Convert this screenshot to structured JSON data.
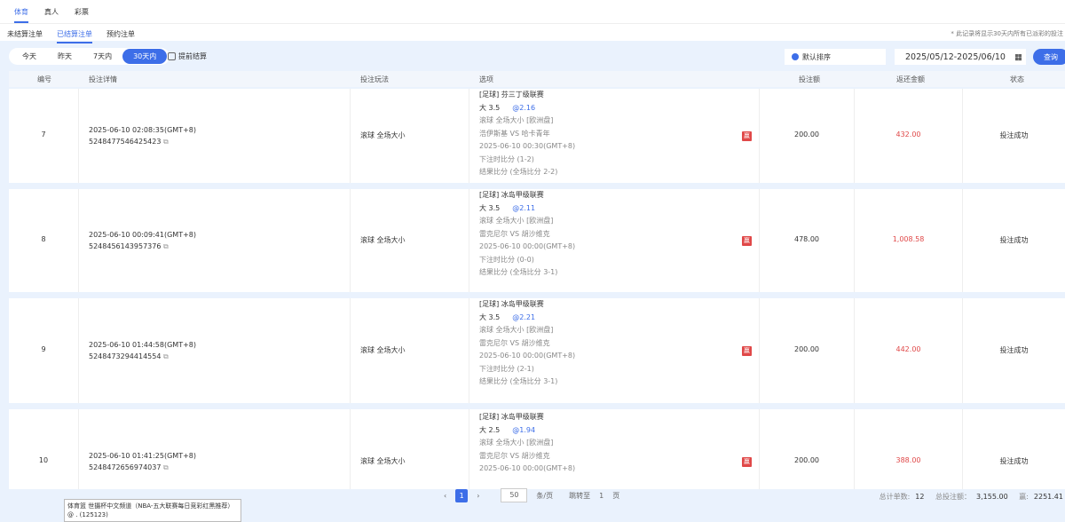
{
  "tabs_main": [
    "体育",
    "真人",
    "彩票"
  ],
  "tabs_sub": [
    "未结算注单",
    "已结算注单",
    "预约注单"
  ],
  "note": "* 此记录将显示30天内所有已派彩的投注",
  "range_buttons": [
    "今天",
    "昨天",
    "7天内",
    "30天内"
  ],
  "early_settle": "提前结算",
  "sort_label": "默认排序",
  "date_range": "2025/05/12-2025/06/10",
  "query_label": "查询",
  "columns": [
    "编号",
    "投注详情",
    "投注玩法",
    "选项",
    "投注额",
    "返还金额",
    "状态"
  ],
  "win_badge": "赢",
  "rows": [
    {
      "no": "7",
      "time": "2025-06-10 02:08:35(GMT+8)",
      "id": "5248477546425423",
      "play": "滚球  全场大小",
      "league": "[足球] 芬三丁级联赛",
      "pick": "大 3.5",
      "odds": "@2.16",
      "market": "滚球  全场大小 [欧洲盘]",
      "match": "浩伊斯基 VS 哈卡青年",
      "kickoff": "2025-06-10 00:30(GMT+8)",
      "bet_score": "下注时比分 (1-2)",
      "result": "结果比分 (全场比分 2-2)",
      "stake": "200.00",
      "return": "432.00",
      "status": "投注成功"
    },
    {
      "no": "8",
      "time": "2025-06-10 00:09:41(GMT+8)",
      "id": "5248456143957376",
      "play": "滚球  全场大小",
      "league": "[足球] 冰岛甲级联赛",
      "pick": "大 3.5",
      "odds": "@2.11",
      "market": "滚球  全场大小 [欧洲盘]",
      "match": "雷克尼尔 VS 胡沙维克",
      "kickoff": "2025-06-10 00:00(GMT+8)",
      "bet_score": "下注时比分 (0-0)",
      "result": "结果比分 (全场比分 3-1)",
      "stake": "478.00",
      "return": "1,008.58",
      "status": "投注成功"
    },
    {
      "no": "9",
      "time": "2025-06-10 01:44:58(GMT+8)",
      "id": "5248473294414554",
      "play": "滚球  全场大小",
      "league": "[足球] 冰岛甲级联赛",
      "pick": "大 3.5",
      "odds": "@2.21",
      "market": "滚球  全场大小 [欧洲盘]",
      "match": "雷克尼尔 VS 胡沙维克",
      "kickoff": "2025-06-10 00:00(GMT+8)",
      "bet_score": "下注时比分 (2-1)",
      "result": "结果比分 (全场比分 3-1)",
      "stake": "200.00",
      "return": "442.00",
      "status": "投注成功"
    },
    {
      "no": "10",
      "time": "2025-06-10 01:41:25(GMT+8)",
      "id": "5248472656974037",
      "play": "滚球  全场大小",
      "league": "[足球] 冰岛甲级联赛",
      "pick": "大 2.5",
      "odds": "@1.94",
      "market": "滚球  全场大小 [欧洲盘]",
      "match": "雷克尼尔 VS 胡沙维克",
      "kickoff": "2025-06-10 00:00(GMT+8)",
      "bet_score": "",
      "result": "",
      "stake": "200.00",
      "return": "388.00",
      "status": "投注成功"
    }
  ],
  "pager": {
    "page": "1",
    "size": "50",
    "per_page": "条/页",
    "goto": "跳转至",
    "goto_page": "1",
    "page_unit": "页"
  },
  "summary": {
    "count_label": "总计单数:",
    "count": "12",
    "stake_label": "总投注额：",
    "stake": "3,155.00",
    "win_label": "赢:",
    "win": "2251.41"
  },
  "tooltip": "体育篮 世摄杯中文频道（NBA-五大联赛每日竞彩红黑推荐）@ . (125123)"
}
